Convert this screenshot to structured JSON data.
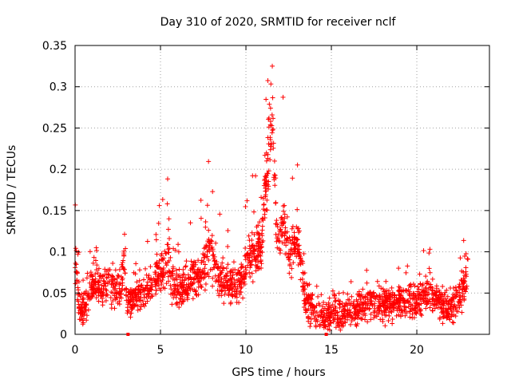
{
  "chart_data": {
    "type": "scatter",
    "title": "Day 310 of 2020, SRMTID for receiver nclf",
    "xlabel": "GPS time / hours",
    "ylabel": "SRMTID / TECUs",
    "xlim": [
      0,
      24.25
    ],
    "ylim": [
      0,
      0.35
    ],
    "xticks": [
      0,
      5,
      10,
      15,
      20
    ],
    "xtick_labels": [
      "0",
      "5",
      "10",
      "15",
      "20"
    ],
    "yticks": [
      0,
      0.05,
      0.1,
      0.15,
      0.2,
      0.25,
      0.3,
      0.35
    ],
    "ytick_labels": [
      "0",
      "0.05",
      "0.1",
      "0.15",
      "0.2",
      "0.25",
      "0.3",
      "0.35"
    ],
    "grid": true,
    "marker": "plus",
    "color": "#ff0000",
    "baseline_markers_x": [
      3.1,
      14.7
    ],
    "profile_hours": [
      0.0,
      0.1,
      0.2,
      0.3,
      0.5,
      0.7,
      1.0,
      1.3,
      1.6,
      2.0,
      2.4,
      2.7,
      2.85,
      3.0,
      3.2,
      3.5,
      4.0,
      4.5,
      4.8,
      5.0,
      5.2,
      5.4,
      5.6,
      6.0,
      6.5,
      7.0,
      7.4,
      7.7,
      7.9,
      8.1,
      8.5,
      9.0,
      9.5,
      9.8,
      10.0,
      10.5,
      10.9,
      11.1,
      11.3,
      11.5,
      11.6,
      11.8,
      12.0,
      12.2,
      12.5,
      12.8,
      13.0,
      13.2,
      13.5,
      14.0,
      14.5,
      15.0,
      15.5,
      16.0,
      16.5,
      17.0,
      17.5,
      18.0,
      18.5,
      19.0,
      19.5,
      20.0,
      20.5,
      21.0,
      21.5,
      22.0,
      22.5,
      22.8,
      23.0
    ],
    "profile_values": [
      0.09,
      0.075,
      0.05,
      0.035,
      0.03,
      0.035,
      0.06,
      0.06,
      0.055,
      0.06,
      0.055,
      0.05,
      0.1,
      0.04,
      0.04,
      0.045,
      0.05,
      0.06,
      0.07,
      0.075,
      0.08,
      0.09,
      0.065,
      0.05,
      0.06,
      0.07,
      0.075,
      0.09,
      0.11,
      0.085,
      0.065,
      0.065,
      0.06,
      0.07,
      0.09,
      0.1,
      0.11,
      0.16,
      0.22,
      0.25,
      0.23,
      0.12,
      0.12,
      0.14,
      0.1,
      0.1,
      0.11,
      0.09,
      0.04,
      0.03,
      0.02,
      0.025,
      0.025,
      0.03,
      0.03,
      0.035,
      0.04,
      0.035,
      0.035,
      0.04,
      0.04,
      0.04,
      0.05,
      0.045,
      0.035,
      0.03,
      0.045,
      0.06,
      0.085
    ],
    "profile_spread": 0.022,
    "point_count": 2200
  }
}
